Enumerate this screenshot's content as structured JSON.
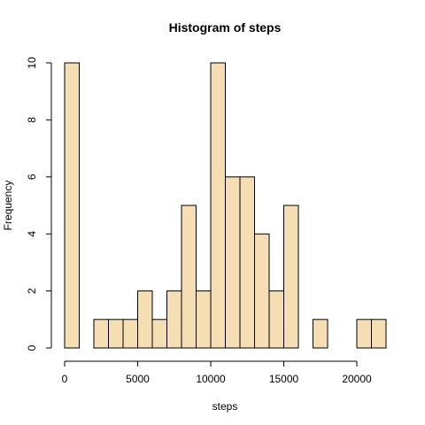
{
  "chart_data": {
    "type": "bar",
    "title": "Histogram of steps",
    "xlabel": "steps",
    "ylabel": "Frequency",
    "bin_width": 1000,
    "bins": [
      {
        "start": 0,
        "end": 1000,
        "count": 10
      },
      {
        "start": 1000,
        "end": 2000,
        "count": 0
      },
      {
        "start": 2000,
        "end": 3000,
        "count": 1
      },
      {
        "start": 3000,
        "end": 4000,
        "count": 1
      },
      {
        "start": 4000,
        "end": 5000,
        "count": 1
      },
      {
        "start": 5000,
        "end": 6000,
        "count": 2
      },
      {
        "start": 6000,
        "end": 7000,
        "count": 1
      },
      {
        "start": 7000,
        "end": 8000,
        "count": 2
      },
      {
        "start": 8000,
        "end": 9000,
        "count": 5
      },
      {
        "start": 9000,
        "end": 10000,
        "count": 2
      },
      {
        "start": 10000,
        "end": 11000,
        "count": 10
      },
      {
        "start": 11000,
        "end": 12000,
        "count": 6
      },
      {
        "start": 12000,
        "end": 13000,
        "count": 6
      },
      {
        "start": 13000,
        "end": 14000,
        "count": 4
      },
      {
        "start": 14000,
        "end": 15000,
        "count": 2
      },
      {
        "start": 15000,
        "end": 16000,
        "count": 5
      },
      {
        "start": 16000,
        "end": 17000,
        "count": 0
      },
      {
        "start": 17000,
        "end": 18000,
        "count": 1
      },
      {
        "start": 18000,
        "end": 19000,
        "count": 0
      },
      {
        "start": 19000,
        "end": 20000,
        "count": 0
      },
      {
        "start": 20000,
        "end": 21000,
        "count": 1
      },
      {
        "start": 21000,
        "end": 22000,
        "count": 1
      }
    ],
    "xlim": [
      0,
      22000
    ],
    "ylim": [
      0,
      10
    ],
    "x_ticks": [
      0,
      5000,
      10000,
      15000,
      20000
    ],
    "y_ticks": [
      0,
      2,
      4,
      6,
      8,
      10
    ],
    "bar_fill": "#F5DEB3",
    "bar_stroke": "#000000",
    "grid": false
  }
}
